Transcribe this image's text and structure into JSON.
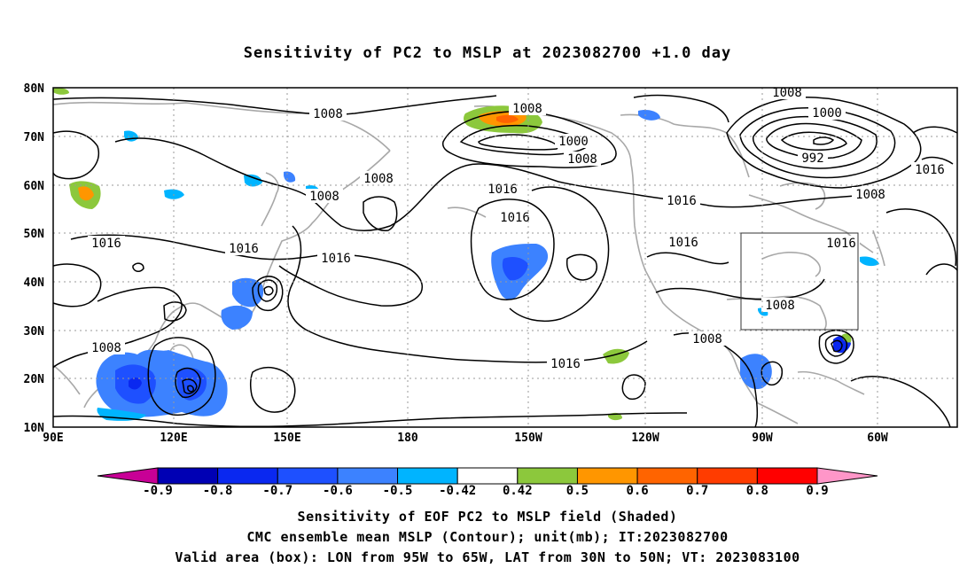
{
  "title": "Sensitivity of PC2 to MSLP at 2023082700 +1.0 day",
  "map": {
    "lon_ticks": [
      "90E",
      "120E",
      "150E",
      "180",
      "150W",
      "120W",
      "90W",
      "60W"
    ],
    "lat_ticks": [
      "80N",
      "70N",
      "60N",
      "50N",
      "40N",
      "30N",
      "20N",
      "10N"
    ],
    "contour_labels": [
      "1008",
      "1008",
      "1000",
      "1008",
      "1008",
      "1000",
      "992",
      "1016",
      "1008",
      "1008",
      "1016",
      "1016",
      "1016",
      "1016",
      "1016",
      "1016",
      "1016",
      "1016",
      "1008",
      "1008",
      "1008",
      "1016",
      "1008"
    ],
    "valid_box": {
      "lon_from": "95W",
      "lon_to": "65W",
      "lat_from": "30N",
      "lat_to": "50N"
    }
  },
  "colorbar": {
    "labels": [
      "-0.9",
      "-0.8",
      "-0.7",
      "-0.6",
      "-0.5",
      "-0.42",
      "0.42",
      "0.5",
      "0.6",
      "0.7",
      "0.8",
      "0.9"
    ],
    "colors": [
      "#0000b4",
      "#0a28f0",
      "#1e50ff",
      "#3c82ff",
      "#00b4ff",
      "#ffffff",
      "#8cc83c",
      "#ff9600",
      "#ff6400",
      "#ff3c00",
      "#ff0000"
    ],
    "low_end_color": "#c80096",
    "high_end_color": "#ff96c8"
  },
  "captions": {
    "line1": "Sensitivity of EOF PC2 to MSLP field (Shaded)",
    "line2": "CMC ensemble mean MSLP (Contour); unit(mb); IT:2023082700",
    "line3": "Valid area (box): LON from 95W to 65W, LAT from 30N to 50N; VT: 2023083100"
  }
}
